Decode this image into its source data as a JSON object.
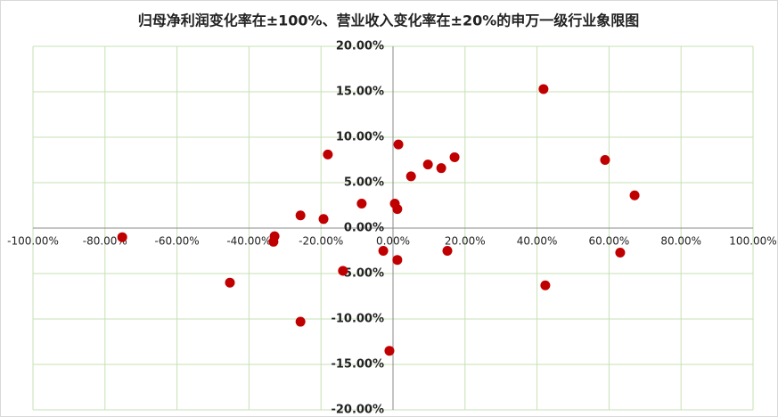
{
  "chart_data": {
    "type": "scatter",
    "title": "归母净利润变化率在±100%、营业收入变化率在±20%的申万一级行业象限图",
    "color": "#c00000",
    "grid": true,
    "xlim": [
      -100,
      100
    ],
    "ylim": [
      -20,
      20
    ],
    "xticks": [
      {
        "value": -100,
        "label": "-100.00%"
      },
      {
        "value": -80,
        "label": "-80.00%"
      },
      {
        "value": -60,
        "label": "-60.00%"
      },
      {
        "value": -40,
        "label": "-40.00%"
      },
      {
        "value": -20,
        "label": "-20.00%"
      },
      {
        "value": 0,
        "label": "0.00%"
      },
      {
        "value": 20,
        "label": "20.00%"
      },
      {
        "value": 40,
        "label": "40.00%"
      },
      {
        "value": 60,
        "label": "60.00%"
      },
      {
        "value": 80,
        "label": "80.00%"
      },
      {
        "value": 100,
        "label": "100.00%"
      }
    ],
    "yticks": [
      {
        "value": -20,
        "label": "-20.00%"
      },
      {
        "value": -15,
        "label": "-15.00%"
      },
      {
        "value": -10,
        "label": "-10.00%"
      },
      {
        "value": -5,
        "label": "-5.00%"
      },
      {
        "value": 0,
        "label": "0.00%"
      },
      {
        "value": 5,
        "label": "5.00%"
      },
      {
        "value": 10,
        "label": "10.00%"
      },
      {
        "value": 15,
        "label": "15.00%"
      },
      {
        "value": 20,
        "label": "20.00%"
      }
    ],
    "x": [
      -75.2,
      -45.3,
      -32.9,
      -33.2,
      -25.7,
      -25.7,
      -19.3,
      -18.1,
      -13.9,
      -8.7,
      -2.7,
      -1.0,
      0.5,
      1.2,
      1.2,
      1.5,
      5.0,
      9.7,
      13.4,
      15.1,
      17.1,
      41.8,
      42.3,
      58.9,
      63.1,
      67.1
    ],
    "values": [
      -1.0,
      -6.0,
      -0.9,
      -1.5,
      1.4,
      -10.3,
      1.0,
      8.1,
      -4.7,
      2.7,
      -2.5,
      -13.5,
      2.7,
      2.1,
      -3.5,
      9.2,
      5.7,
      7.0,
      6.6,
      -2.5,
      7.8,
      15.3,
      -6.3,
      7.5,
      -2.7,
      3.6
    ]
  }
}
